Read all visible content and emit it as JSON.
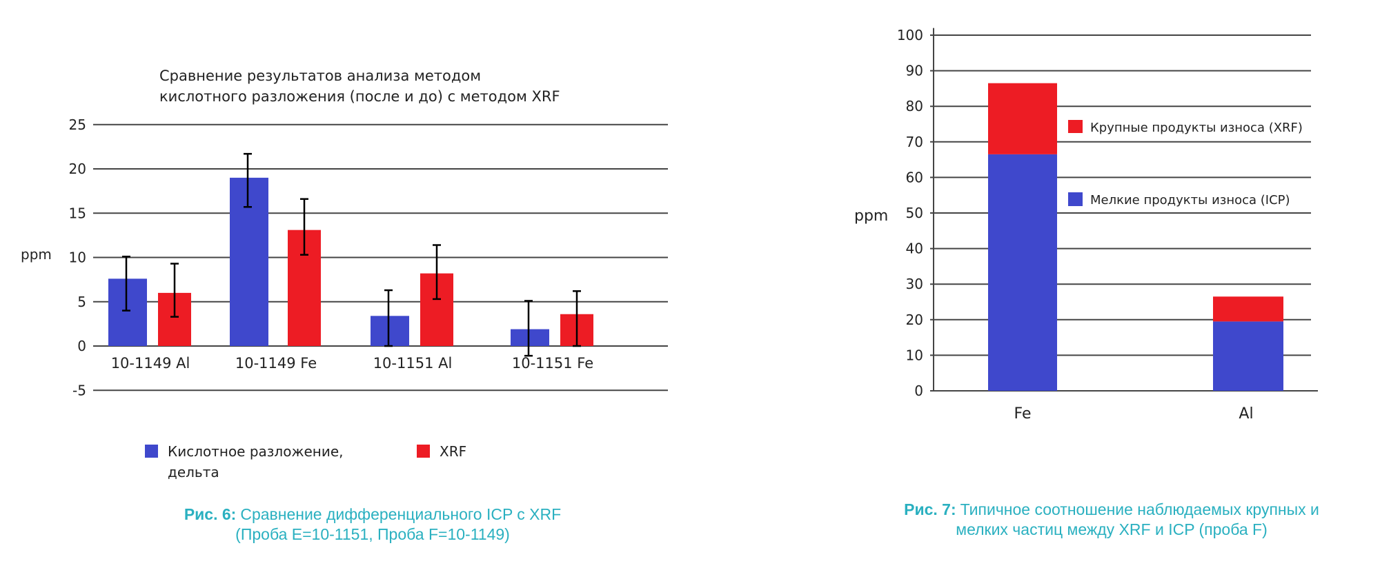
{
  "colors": {
    "blue": "#3f48cc",
    "red": "#ed1c24",
    "grid": "#444444",
    "caption": "#2ab0c0"
  },
  "chart_data": [
    {
      "type": "bar",
      "title_lines": [
        "Сравнение результатов анализа методом",
        "кислотного разложения (после и до) с методом XRF"
      ],
      "ylabel": "ppm",
      "ylim": [
        -5,
        25
      ],
      "yticks": [
        -5,
        0,
        5,
        10,
        15,
        20,
        25
      ],
      "categories": [
        "10-1149 Al",
        "10-1149 Fe",
        "10-1151 Al",
        "10-1151 Fe"
      ],
      "series": [
        {
          "name": "Кислотное разложение, дельта",
          "legend_lines": [
            "Кислотное разложение,",
            "дельта"
          ],
          "color_key": "blue",
          "values": [
            7.6,
            19.0,
            3.4,
            1.9
          ],
          "error_low": [
            4.0,
            15.7,
            0.0,
            -1.1
          ],
          "error_high": [
            10.1,
            21.7,
            6.3,
            5.1
          ]
        },
        {
          "name": "XRF",
          "legend_lines": [
            "XRF"
          ],
          "color_key": "red",
          "values": [
            6.0,
            13.1,
            8.2,
            3.6
          ],
          "error_low": [
            3.3,
            10.3,
            5.3,
            0.0
          ],
          "error_high": [
            9.3,
            16.6,
            11.4,
            6.2
          ]
        }
      ],
      "grid": true,
      "caption": {
        "label": "Рис. 6:",
        "line1": "Сравнение дифференциального ICP с XRF",
        "line2": "(Проба E=10-1151, Проба F=10-1149)"
      }
    },
    {
      "type": "stacked-bar",
      "ylabel": "ppm",
      "ylim": [
        0,
        100
      ],
      "yticks": [
        0,
        10,
        20,
        30,
        40,
        50,
        60,
        70,
        80,
        90,
        100
      ],
      "categories": [
        "Fe",
        "Al"
      ],
      "series": [
        {
          "name": "Мелкие продукты износа (ICP)",
          "color_key": "blue",
          "values": [
            66.5,
            19.5
          ]
        },
        {
          "name": "Крупные продукты износа (XRF)",
          "color_key": "red",
          "values": [
            20.0,
            7.0
          ]
        }
      ],
      "legend_order": [
        1,
        0
      ],
      "grid": true,
      "caption": {
        "label": "Рис. 7:",
        "line1": "Типичное соотношение наблюдаемых крупных и",
        "line2": "мелких частиц между XRF и ICP (проба F)"
      }
    }
  ]
}
